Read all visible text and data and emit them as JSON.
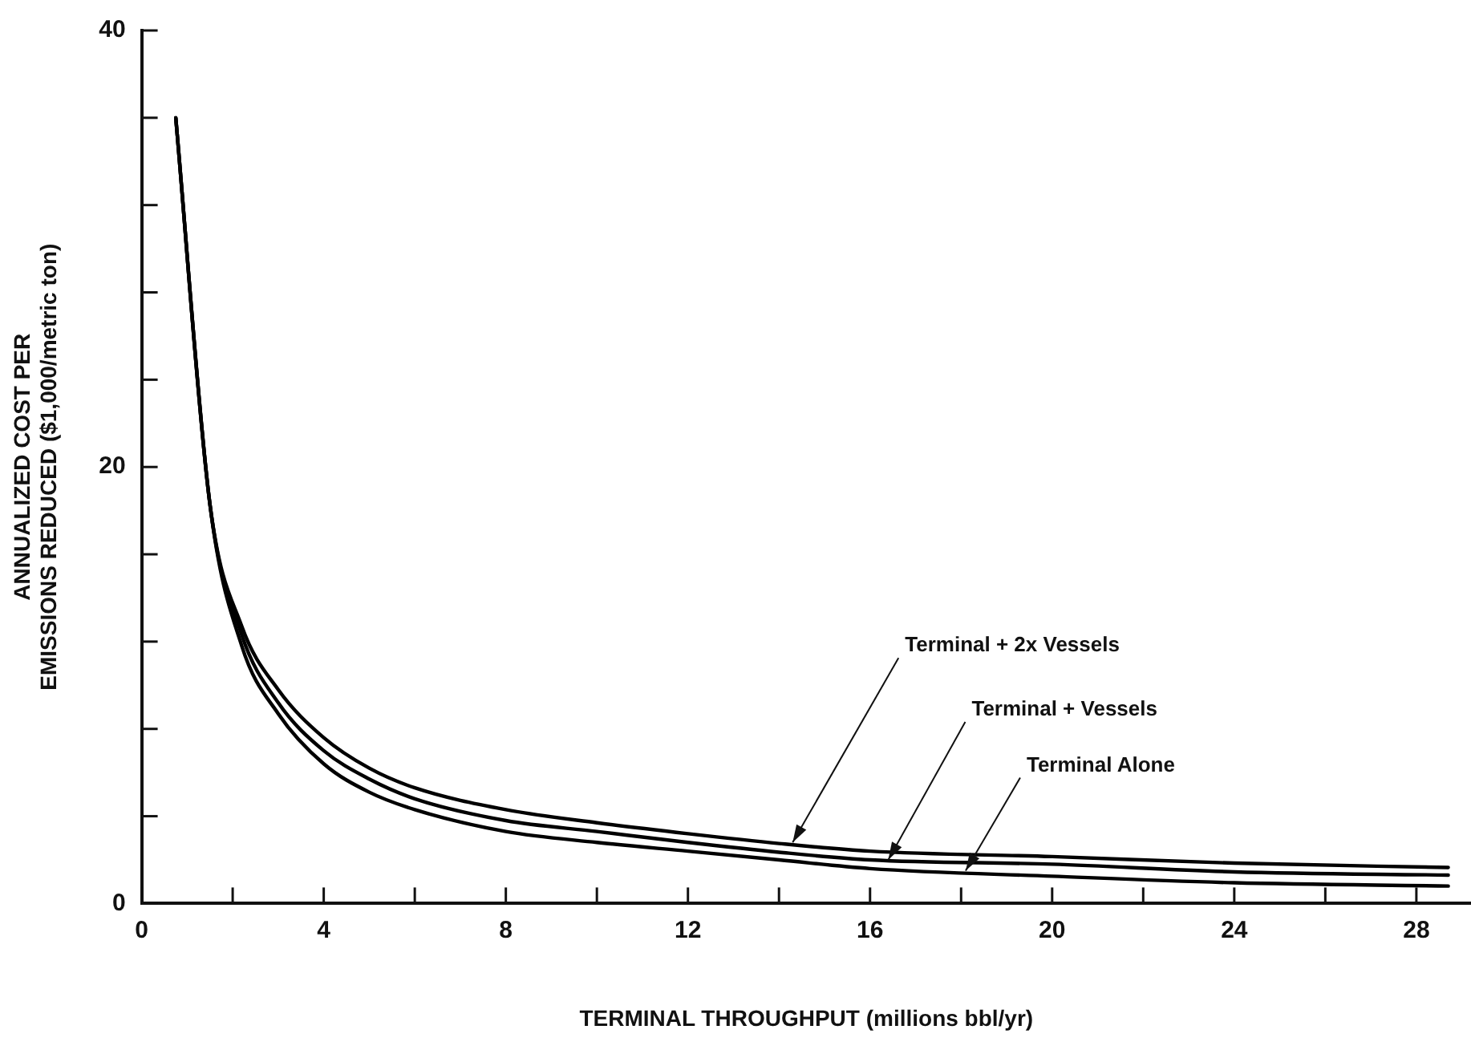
{
  "chart_data": {
    "type": "line",
    "xlabel": "TERMINAL THROUGHPUT (millions bbl/yr)",
    "ylabel": "ANNUALIZED COST PER\nEMISSIONS REDUCED ($1,000/metric ton)",
    "xlim": [
      0,
      29.2
    ],
    "ylim": [
      0,
      40
    ],
    "xticks": [
      0,
      {
        "value": 2,
        "label": null
      },
      4,
      {
        "value": 6,
        "label": null
      },
      8,
      {
        "value": 10,
        "label": null
      },
      12,
      {
        "value": 14,
        "label": null
      },
      16,
      {
        "value": 18,
        "label": null
      },
      20,
      {
        "value": 22,
        "label": null
      },
      24,
      {
        "value": 26,
        "label": null
      },
      28
    ],
    "yticks": [
      0,
      {
        "value": 4,
        "label": null
      },
      {
        "value": 8,
        "label": null
      },
      {
        "value": 12,
        "label": null
      },
      {
        "value": 16,
        "label": null
      },
      20,
      {
        "value": 24,
        "label": null
      },
      {
        "value": 28,
        "label": null
      },
      {
        "value": 32,
        "label": null
      },
      {
        "value": 36,
        "label": null
      },
      40
    ],
    "grid": false,
    "legend": false,
    "marker": "none",
    "line_style": "solid",
    "series": [
      {
        "color": "#000000",
        "x": [
          0.75,
          1.5,
          2.2,
          3,
          4,
          5,
          6,
          8,
          10,
          12,
          14,
          16,
          20,
          24,
          28.7
        ],
        "values": [
          36,
          18.3,
          12.7,
          9.8,
          7.6,
          6.2,
          5.3,
          4.3,
          3.7,
          3.2,
          2.75,
          2.4,
          2.15,
          1.85,
          1.65
        ]
      },
      {
        "color": "#000000",
        "x": [
          0.75,
          1.5,
          2.2,
          3,
          4,
          5,
          6,
          8,
          10,
          12,
          14,
          16,
          20,
          24,
          28.7
        ],
        "values": [
          36,
          18.3,
          12.3,
          9.2,
          7.0,
          5.7,
          4.8,
          3.8,
          3.3,
          2.8,
          2.35,
          2.0,
          1.8,
          1.45,
          1.3
        ]
      },
      {
        "color": "#000000",
        "x": [
          0.75,
          1.5,
          2.2,
          3,
          4,
          5,
          6,
          8,
          10,
          12,
          14,
          16,
          20,
          24,
          28.7
        ],
        "values": [
          36,
          18.3,
          11.8,
          8.7,
          6.4,
          5.1,
          4.3,
          3.3,
          2.8,
          2.4,
          2.0,
          1.6,
          1.25,
          0.95,
          0.8
        ]
      }
    ],
    "annotations": [
      {
        "text": "Terminal + 2x Vessels",
        "x": 14.3,
        "y": 2.8
      },
      {
        "text": "Terminal + Vessels",
        "x": 16.4,
        "y": 2.0
      },
      {
        "text": "Terminal Alone",
        "x": 18.1,
        "y": 1.5
      }
    ]
  }
}
